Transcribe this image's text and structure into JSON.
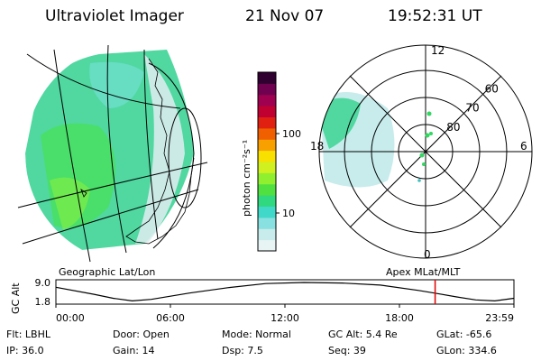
{
  "header": {
    "instrument": "Ultraviolet Imager",
    "date": "21 Nov 07",
    "time": "19:52:31 UT"
  },
  "colorbar": {
    "unit_label": "photon cm⁻²s⁻¹",
    "ticks": [
      {
        "label": "100",
        "value": 100
      },
      {
        "label": "10",
        "value": 10
      }
    ],
    "scale": "log",
    "colors": [
      "#e8f4f4",
      "#c8ecec",
      "#88e0e0",
      "#40d8c8",
      "#30d880",
      "#50e040",
      "#90f030",
      "#d0f020",
      "#f8e000",
      "#f8a000",
      "#f06000",
      "#e02010",
      "#c00030",
      "#a00050",
      "#700050",
      "#300030"
    ]
  },
  "left_panel": {
    "caption": "Geographic Lat/Lon"
  },
  "right_panel": {
    "caption": "Apex MLat/MLT",
    "mlt_labels": [
      {
        "label": "12",
        "mlt": 12
      },
      {
        "label": "18",
        "mlt": 18
      },
      {
        "label": "6",
        "mlt": 6
      },
      {
        "label": "0",
        "mlt": 0
      }
    ],
    "lat_labels": [
      {
        "label": "60",
        "lat": 60
      },
      {
        "label": "70",
        "lat": 70
      },
      {
        "label": "80",
        "lat": 80
      }
    ]
  },
  "chart_data": {
    "type": "line",
    "ylabel": "GC Alt",
    "yticks": [
      "9.0",
      "1.8"
    ],
    "ylim": [
      1.8,
      9.0
    ],
    "xticks": [
      "00:00",
      "06:00",
      "12:00",
      "18:00",
      "23:59"
    ],
    "xlim_hours": [
      0,
      24
    ],
    "series": [
      {
        "x_hours": [
          0,
          2,
          3,
          4,
          5,
          6,
          7,
          9,
          11,
          13,
          15,
          17,
          19,
          20,
          21,
          22,
          23,
          24
        ],
        "y": [
          7.2,
          4.5,
          3.0,
          2.0,
          2.6,
          3.8,
          5.0,
          7.0,
          8.6,
          9.0,
          8.8,
          8.0,
          6.0,
          4.8,
          3.5,
          2.4,
          2.0,
          3.0
        ]
      }
    ],
    "current_time_hours": 19.87,
    "marker_color": "#e00000"
  },
  "info": {
    "filter": "Flt: LBHL",
    "door": "Door: Open",
    "mode": "Mode: Normal",
    "gc_alt": "GC Alt: 5.4 Re",
    "glat": "GLat: -65.6",
    "ip": "IP: 36.0",
    "gain": "Gain: 14",
    "dsp": "Dsp:     7.5",
    "seq": "Seq: 39",
    "glon": "GLon: 334.6"
  }
}
